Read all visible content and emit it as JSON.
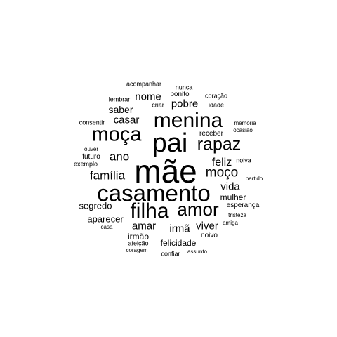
{
  "word_cloud": {
    "text_color": "#000000",
    "background": "#ffffff",
    "words": [
      {
        "text": "mãe",
        "weight": 100
      },
      {
        "text": "casamento",
        "weight": 78
      },
      {
        "text": "pai",
        "weight": 74
      },
      {
        "text": "filha",
        "weight": 70
      },
      {
        "text": "menina",
        "weight": 66
      },
      {
        "text": "moça",
        "weight": 62
      },
      {
        "text": "amor",
        "weight": 60
      },
      {
        "text": "rapaz",
        "weight": 55
      },
      {
        "text": "moço",
        "weight": 48
      },
      {
        "text": "ano",
        "weight": 42
      },
      {
        "text": "família",
        "weight": 42
      },
      {
        "text": "feliz",
        "weight": 40
      },
      {
        "text": "vida",
        "weight": 36
      },
      {
        "text": "amar",
        "weight": 36
      },
      {
        "text": "irmã",
        "weight": 36
      },
      {
        "text": "viver",
        "weight": 36
      },
      {
        "text": "casar",
        "weight": 35
      },
      {
        "text": "pobre",
        "weight": 35
      },
      {
        "text": "nome",
        "weight": 33
      },
      {
        "text": "saber",
        "weight": 33
      },
      {
        "text": "segredo",
        "weight": 30
      },
      {
        "text": "aparecer",
        "weight": 30
      },
      {
        "text": "felicidade",
        "weight": 28
      },
      {
        "text": "mulher",
        "weight": 26
      },
      {
        "text": "irmão",
        "weight": 26
      },
      {
        "text": "esperança",
        "weight": 22
      },
      {
        "text": "noivo",
        "weight": 22
      },
      {
        "text": "bonito",
        "weight": 22
      },
      {
        "text": "receber",
        "weight": 22
      },
      {
        "text": "criar",
        "weight": 21
      },
      {
        "text": "futuro",
        "weight": 20
      },
      {
        "text": "noiva",
        "weight": 20
      },
      {
        "text": "consentir",
        "weight": 18
      },
      {
        "text": "coração",
        "weight": 18
      },
      {
        "text": "idade",
        "weight": 18
      },
      {
        "text": "ocasião",
        "weight": 17
      },
      {
        "text": "memória",
        "weight": 17
      },
      {
        "text": "partido",
        "weight": 17
      },
      {
        "text": "tristeza",
        "weight": 17
      },
      {
        "text": "amiga",
        "weight": 17
      },
      {
        "text": "acompanhar",
        "weight": 17
      },
      {
        "text": "nunca",
        "weight": 17
      },
      {
        "text": "lembrar",
        "weight": 17
      },
      {
        "text": "ouver",
        "weight": 17
      },
      {
        "text": "exemplo",
        "weight": 17
      },
      {
        "text": "casa",
        "weight": 17
      },
      {
        "text": "afeição",
        "weight": 17
      },
      {
        "text": "coragem",
        "weight": 17
      },
      {
        "text": "confiar",
        "weight": 17
      },
      {
        "text": "assunto",
        "weight": 17
      }
    ]
  }
}
